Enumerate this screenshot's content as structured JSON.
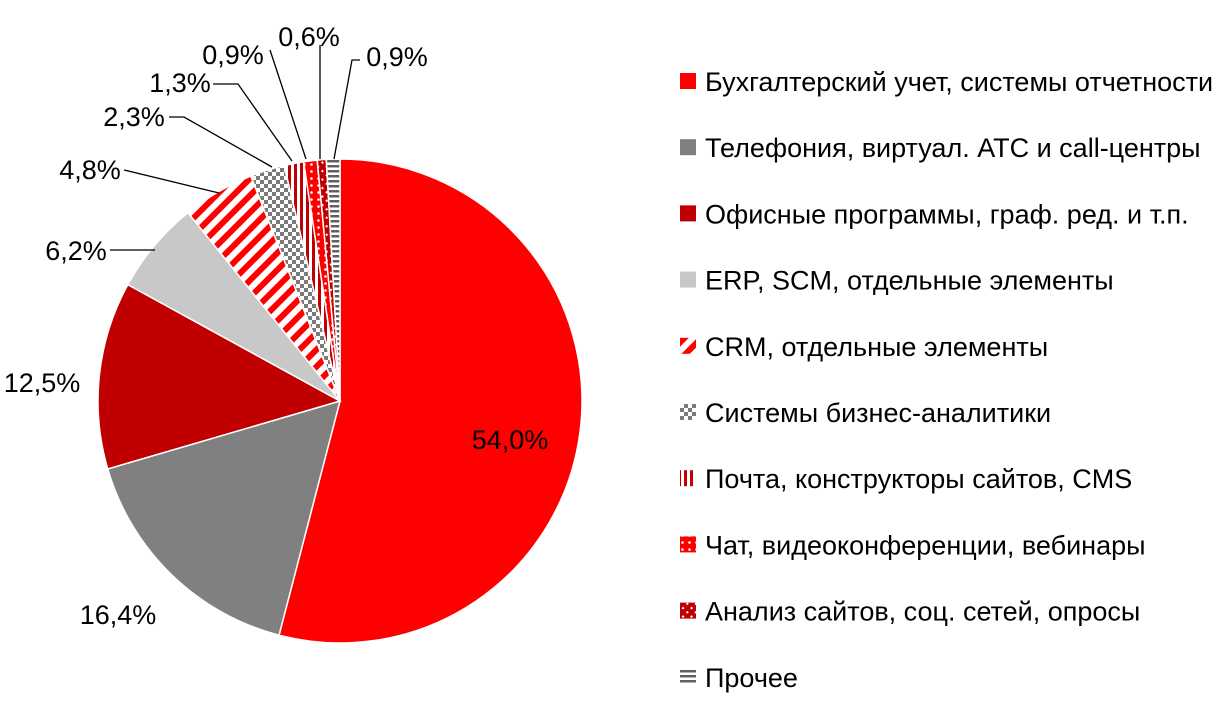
{
  "chart_data": {
    "type": "pie",
    "title": "",
    "legend_position": "right",
    "slices": [
      {
        "label": "Бухгалтерский учет, системы отчетности",
        "value": 54.0,
        "display": "54,0%",
        "color": "#ff0000",
        "pattern": "solid"
      },
      {
        "label": "Телефония, виртуал. АТС и call-центры",
        "value": 16.4,
        "display": "16,4%",
        "color": "#808080",
        "pattern": "solid"
      },
      {
        "label": "Офисные программы, граф. ред. и т.п.",
        "value": 12.5,
        "display": "12,5%",
        "color": "#c00000",
        "pattern": "solid"
      },
      {
        "label": "ERP, SCM, отдельные элементы",
        "value": 6.2,
        "display": "6,2%",
        "color": "#c8c8c8",
        "pattern": "solid"
      },
      {
        "label": "CRM, отдельные элементы",
        "value": 4.8,
        "display": "4,8%",
        "color": "#ff0000",
        "pattern": "diagonal-stripes"
      },
      {
        "label": "Системы бизнес-аналитики",
        "value": 2.3,
        "display": "2,3%",
        "color": "#808080",
        "pattern": "checker"
      },
      {
        "label": "Почта, конструкторы сайтов, CMS",
        "value": 1.3,
        "display": "1,3%",
        "color": "#c00000",
        "pattern": "vertical-stripes"
      },
      {
        "label": "Чат, видеоконференции, вебинары",
        "value": 0.9,
        "display": "0,9%",
        "color": "#ff0000",
        "pattern": "dots"
      },
      {
        "label": "Анализ сайтов, соц. сетей, опросы",
        "value": 0.6,
        "display": "0,6%",
        "color": "#c00000",
        "pattern": "diagonal-dots"
      },
      {
        "label": "Прочее",
        "value": 0.9,
        "display": "0,9%",
        "color": "#606060",
        "pattern": "horizontal-stripes"
      }
    ]
  }
}
